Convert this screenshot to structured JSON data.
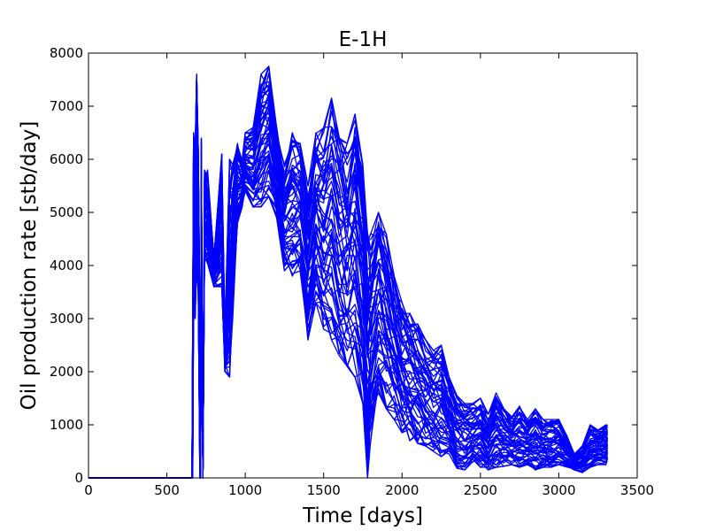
{
  "chart_data": {
    "type": "line",
    "title": "E-1H",
    "xlabel": "Time [days]",
    "ylabel": "Oil production rate [stb/day]",
    "xlim": [
      0,
      3500
    ],
    "ylim": [
      0,
      8000
    ],
    "xticks": [
      0,
      500,
      1000,
      1500,
      2000,
      2500,
      3000,
      3500
    ],
    "yticks": [
      0,
      1000,
      2000,
      3000,
      4000,
      5000,
      6000,
      7000,
      8000
    ],
    "grid": false,
    "legend": false,
    "line_color": "#0000ff",
    "ensemble_members": 60,
    "series_envelope": {
      "x": [
        0,
        660,
        665,
        670,
        680,
        690,
        700,
        710,
        715,
        720,
        730,
        740,
        760,
        800,
        850,
        870,
        900,
        920,
        950,
        980,
        1000,
        1050,
        1100,
        1150,
        1200,
        1250,
        1300,
        1350,
        1400,
        1450,
        1500,
        1550,
        1600,
        1650,
        1700,
        1750,
        1780,
        1800,
        1850,
        1900,
        1950,
        2000,
        2050,
        2100,
        2150,
        2200,
        2250,
        2300,
        2350,
        2400,
        2450,
        2500,
        2550,
        2600,
        2650,
        2700,
        2750,
        2800,
        2850,
        2900,
        2950,
        3000,
        3050,
        3100,
        3150,
        3200,
        3250,
        3300,
        3310
      ],
      "upper": [
        0,
        0,
        3050,
        6500,
        6200,
        7600,
        6200,
        3400,
        0,
        6400,
        0,
        5800,
        5800,
        4200,
        6100,
        2800,
        6000,
        5900,
        6300,
        6000,
        6500,
        6600,
        7600,
        7750,
        6600,
        5900,
        6500,
        6300,
        5500,
        6500,
        6600,
        7150,
        6400,
        6300,
        6850,
        5900,
        4600,
        4600,
        5000,
        4600,
        3800,
        3300,
        3100,
        2900,
        2600,
        2400,
        2500,
        1900,
        1550,
        1400,
        1400,
        1500,
        1200,
        1600,
        1300,
        1150,
        1350,
        1100,
        1300,
        1100,
        1100,
        1100,
        800,
        450,
        600,
        1000,
        900,
        1000,
        1000
      ],
      "lower": [
        0,
        0,
        0,
        3200,
        3000,
        4000,
        3500,
        0,
        0,
        3900,
        0,
        4100,
        4000,
        3600,
        3600,
        2000,
        1900,
        3000,
        4800,
        5100,
        5400,
        5100,
        5100,
        5300,
        4900,
        3900,
        3800,
        3900,
        2600,
        3300,
        2800,
        2600,
        2300,
        2100,
        1900,
        1400,
        0,
        700,
        1600,
        1300,
        1100,
        850,
        700,
        650,
        600,
        500,
        400,
        450,
        150,
        150,
        300,
        200,
        150,
        200,
        220,
        250,
        200,
        250,
        150,
        200,
        200,
        250,
        200,
        150,
        100,
        200,
        250,
        250,
        300
      ]
    }
  }
}
